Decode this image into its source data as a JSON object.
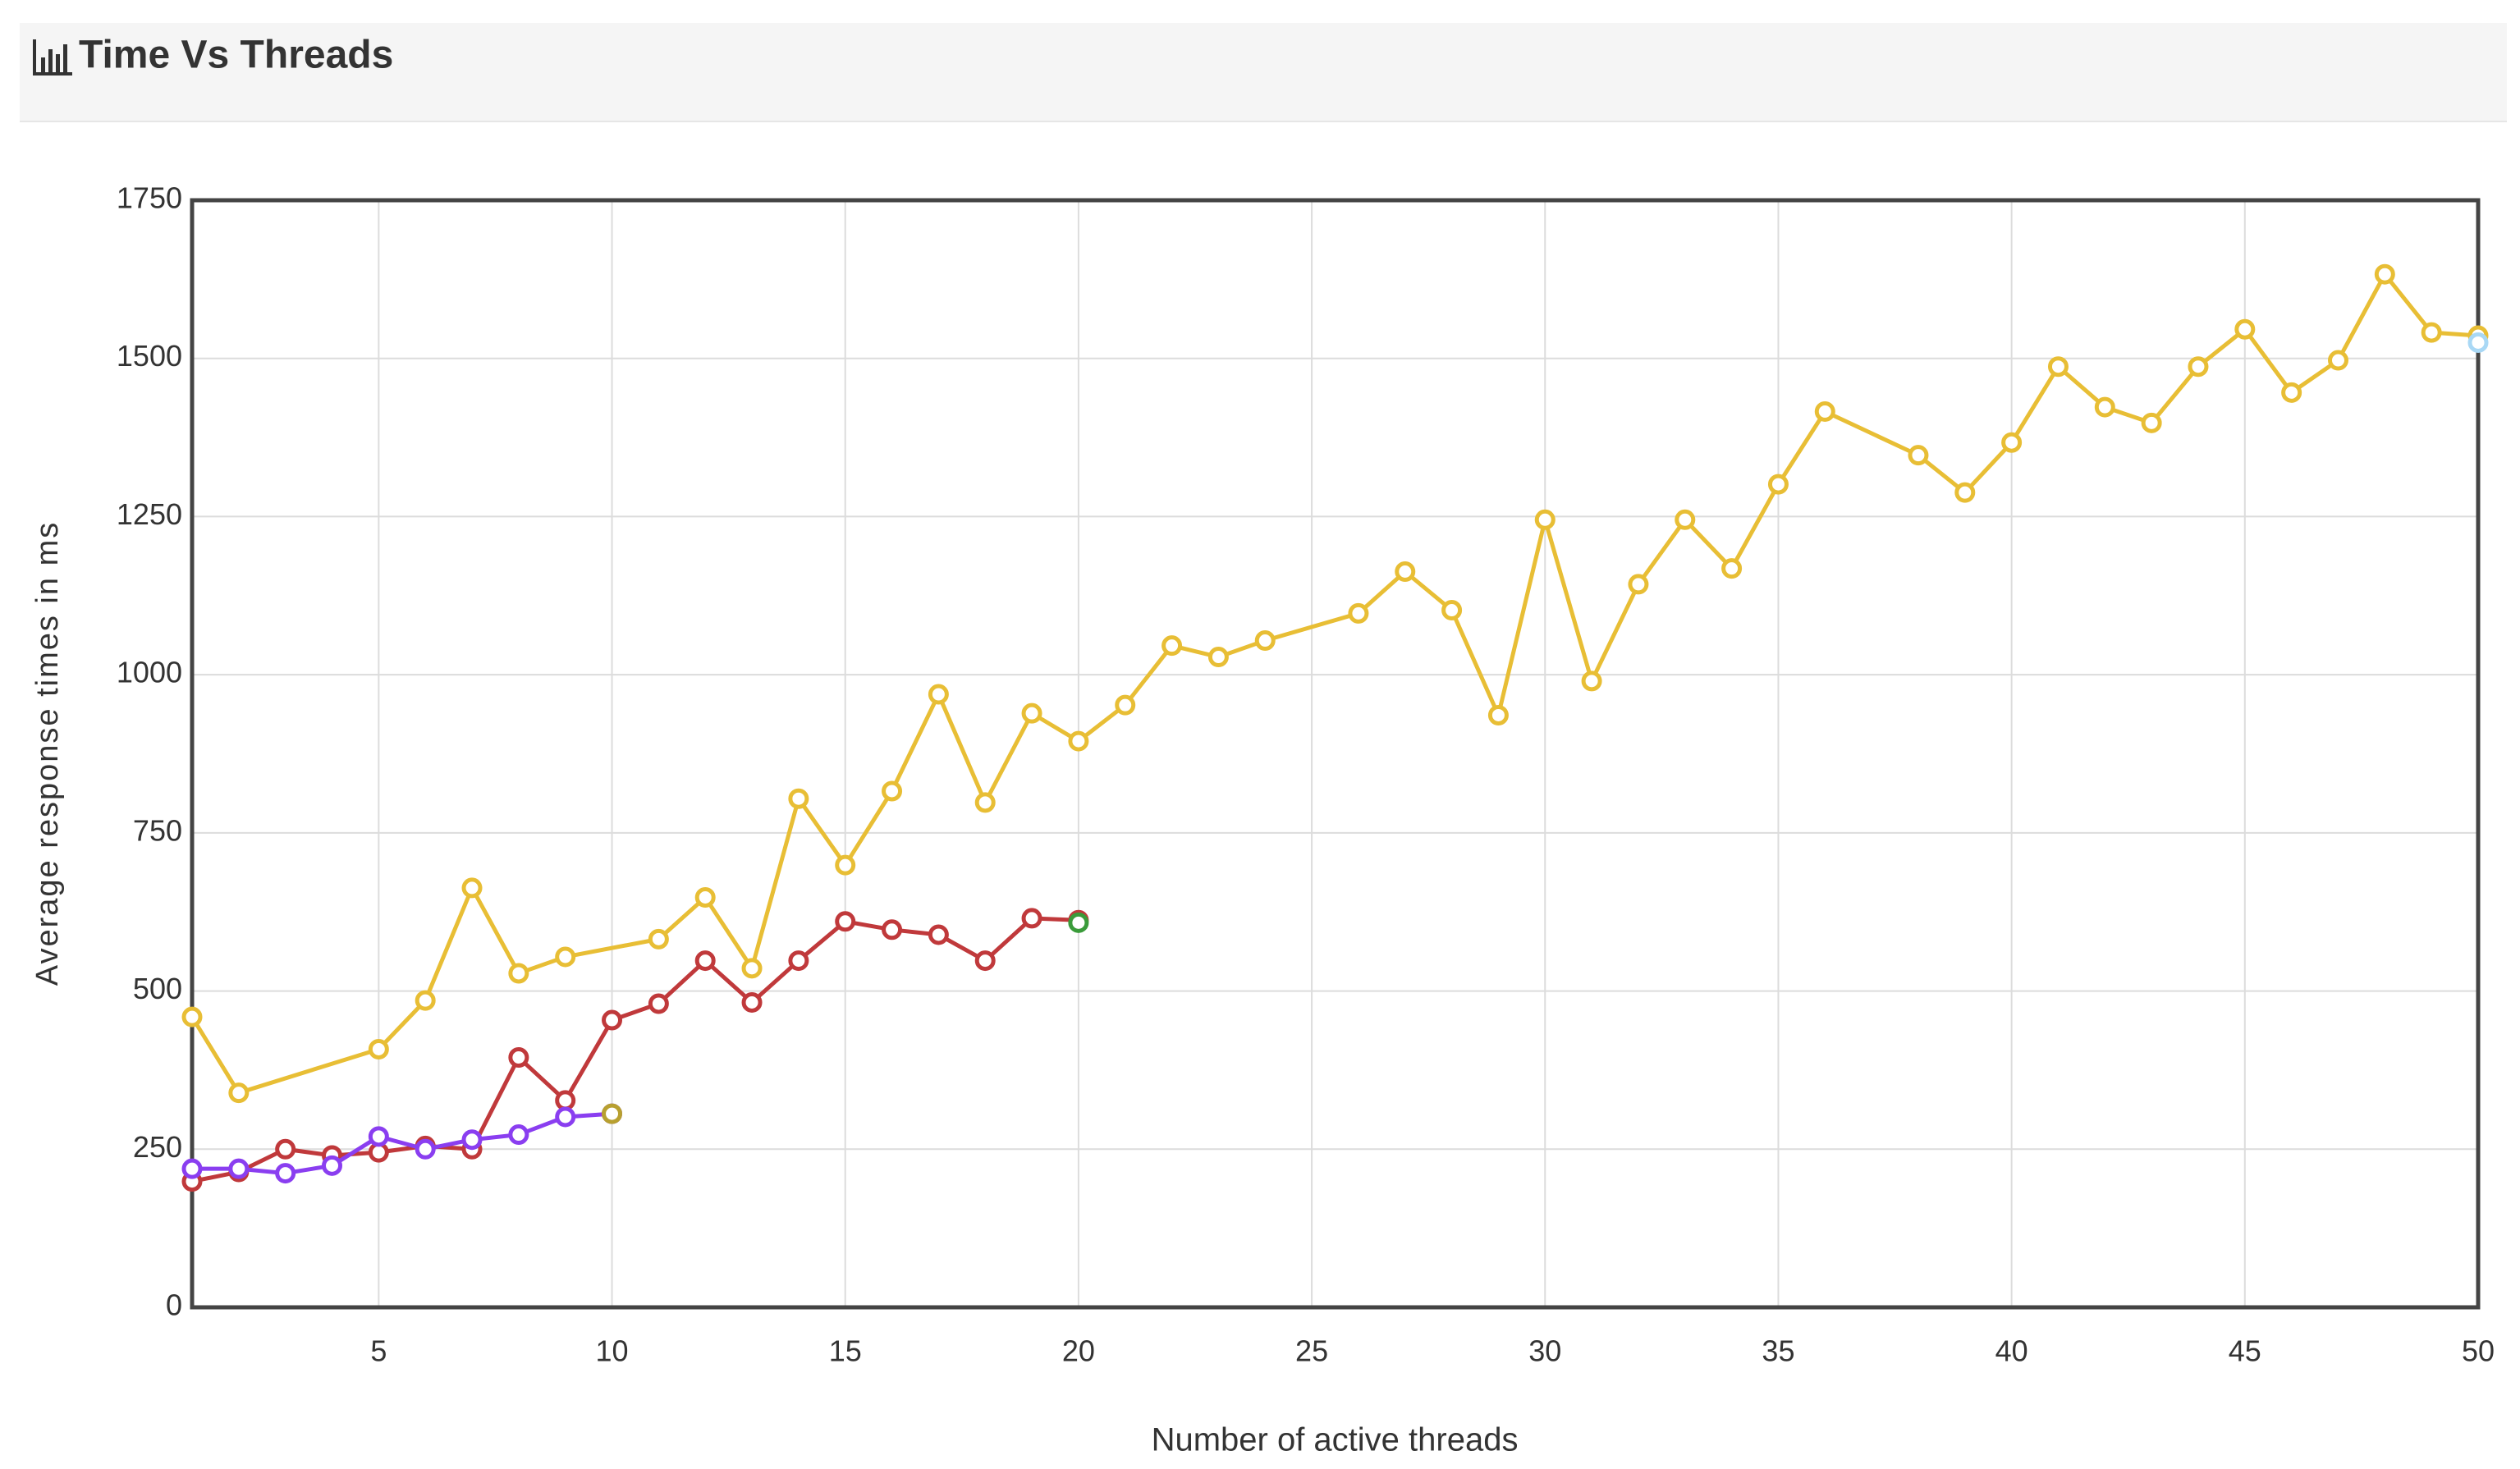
{
  "chart_data": {
    "type": "line",
    "title": "Time Vs Threads",
    "x_label": "Number of active threads",
    "y_label": "Average response times in ms",
    "xlim": [
      1,
      50
    ],
    "xticks": [
      5,
      10,
      15,
      20,
      25,
      30,
      35,
      40,
      45,
      50
    ],
    "ylim": [
      0,
      1750
    ],
    "yticks": [
      0,
      250,
      500,
      750,
      1000,
      1250,
      1500,
      1750
    ],
    "grid": true,
    "series": [
      {
        "color": "#e8be35",
        "x": [
          1,
          2,
          5,
          6,
          7,
          8,
          9,
          11,
          12,
          13,
          14,
          15,
          16,
          17,
          18,
          19,
          20,
          21,
          22,
          23,
          24,
          26,
          27,
          28,
          29,
          30,
          31,
          32,
          33,
          34,
          35,
          36,
          38,
          39,
          40,
          41,
          42,
          43,
          44,
          45,
          46,
          47,
          48,
          49,
          50
        ],
        "values": [
          459,
          339,
          408,
          485,
          663,
          528,
          554,
          582,
          648,
          536,
          804,
          699,
          816,
          969,
          798,
          939,
          895,
          952,
          1046,
          1028,
          1054,
          1097,
          1163,
          1102,
          936,
          1245,
          990,
          1143,
          1245,
          1168,
          1301,
          1416,
          1347,
          1288,
          1367,
          1487,
          1423,
          1398,
          1487,
          1546,
          1446,
          1497,
          1633,
          1541,
          1536
        ]
      },
      {
        "color": "#c0393b",
        "x": [
          1,
          2,
          3,
          4,
          5,
          6,
          7,
          8,
          9,
          10,
          11,
          12,
          13,
          14,
          15,
          16,
          17,
          18,
          19,
          20
        ],
        "values": [
          199,
          214,
          250,
          240,
          245,
          255,
          250,
          395,
          327,
          454,
          480,
          548,
          482,
          548,
          610,
          597,
          589,
          548,
          615,
          612
        ]
      },
      {
        "color": "#8a3ef0",
        "x": [
          1,
          2,
          3,
          4,
          5,
          6,
          7,
          8,
          9,
          10
        ],
        "values": [
          219,
          219,
          212,
          224,
          270,
          250,
          265,
          273,
          301,
          306
        ]
      },
      {
        "color": "#3a9b3a",
        "x": [
          20
        ],
        "values": [
          608
        ]
      },
      {
        "color": "#a9d8f5",
        "x": [
          50
        ],
        "values": [
          1525
        ]
      },
      {
        "color": "#b8a030",
        "x": [
          10
        ],
        "values": [
          306
        ]
      }
    ]
  }
}
